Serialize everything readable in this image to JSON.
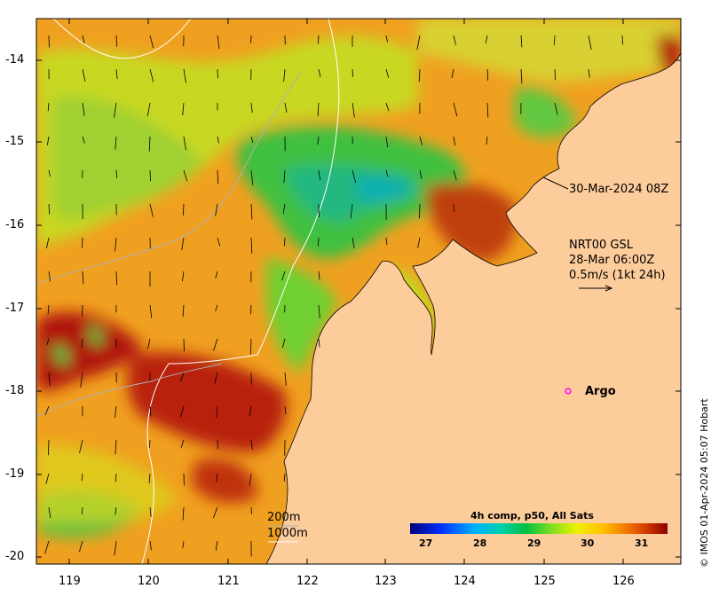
{
  "map": {
    "lat_labels": [
      "-14",
      "-15",
      "-16",
      "-17",
      "-18",
      "-19",
      "-20"
    ],
    "lon_labels": [
      "119",
      "120",
      "121",
      "122",
      "123",
      "124",
      "125",
      "126"
    ],
    "timestamp_label": "30-Mar-2024 08Z",
    "current_info": {
      "line1": "NRT00 GSL",
      "line2": "28-Mar 06:00Z",
      "line3": "0.5m/s (1kt 24h)"
    },
    "argo_label": "Argo",
    "contours": {
      "label_200m": "200m",
      "label_1000m": "1000m"
    },
    "colorbar": {
      "title": "4h comp, p50, All Sats",
      "ticks": [
        "27",
        "28",
        "29",
        "30",
        "31"
      ]
    },
    "copyright": "© IMOS 01-Apr-2024 05:07 Hobart",
    "colors": {
      "land": "#fdcc9b",
      "argo_marker": "#ff00ff",
      "contour_200m": "#b0b0b0",
      "contour_1000m": "#ffffff"
    }
  }
}
